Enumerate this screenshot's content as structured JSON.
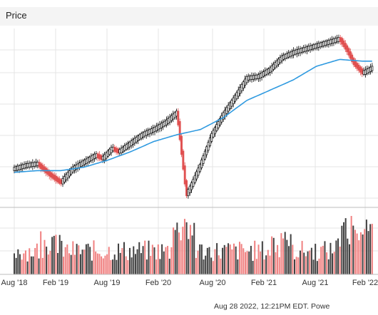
{
  "legend": {
    "series_label": "Price"
  },
  "footer": {
    "timestamp": "Aug 28 2022, 12:21PM EDT.",
    "powered": "Powe"
  },
  "colors": {
    "up": "#000000",
    "down": "#e05050",
    "ma": "#2f9ae0",
    "vol_up": "#404040",
    "vol_down": "#f08080",
    "grid": "#e4e4e4"
  },
  "chart_data": {
    "type": "line",
    "x_tick_labels": [
      "Aug '18",
      "Feb '19",
      "Aug '19",
      "Feb '20",
      "Aug '20",
      "Feb '21",
      "Aug '21",
      "Feb '22"
    ],
    "price_path": [
      [
        0.0,
        0.2
      ],
      [
        0.05,
        0.22
      ],
      [
        0.1,
        0.23
      ],
      [
        0.15,
        0.17
      ],
      [
        0.2,
        0.12
      ],
      [
        0.25,
        0.2
      ],
      [
        0.3,
        0.24
      ],
      [
        0.35,
        0.28
      ],
      [
        0.38,
        0.26
      ],
      [
        0.42,
        0.32
      ],
      [
        0.45,
        0.3
      ],
      [
        0.5,
        0.35
      ],
      [
        0.55,
        0.4
      ],
      [
        0.6,
        0.43
      ],
      [
        0.65,
        0.47
      ],
      [
        0.7,
        0.53
      ],
      [
        0.74,
        0.05
      ],
      [
        0.76,
        0.1
      ],
      [
        0.8,
        0.22
      ],
      [
        0.85,
        0.4
      ],
      [
        0.9,
        0.52
      ],
      [
        0.95,
        0.62
      ],
      [
        1.0,
        0.73
      ],
      [
        1.05,
        0.74
      ],
      [
        1.1,
        0.78
      ],
      [
        1.15,
        0.85
      ],
      [
        1.2,
        0.88
      ],
      [
        1.25,
        0.9
      ],
      [
        1.3,
        0.92
      ],
      [
        1.35,
        0.94
      ],
      [
        1.4,
        0.96
      ],
      [
        1.43,
        0.9
      ],
      [
        1.46,
        0.82
      ],
      [
        1.5,
        0.76
      ],
      [
        1.54,
        0.79
      ]
    ],
    "ma_path": [
      [
        0.0,
        0.18
      ],
      [
        0.1,
        0.19
      ],
      [
        0.2,
        0.19
      ],
      [
        0.3,
        0.21
      ],
      [
        0.4,
        0.25
      ],
      [
        0.5,
        0.3
      ],
      [
        0.6,
        0.36
      ],
      [
        0.7,
        0.4
      ],
      [
        0.8,
        0.43
      ],
      [
        0.9,
        0.5
      ],
      [
        1.0,
        0.6
      ],
      [
        1.1,
        0.66
      ],
      [
        1.2,
        0.72
      ],
      [
        1.3,
        0.8
      ],
      [
        1.4,
        0.84
      ],
      [
        1.5,
        0.83
      ],
      [
        1.54,
        0.83
      ]
    ],
    "grid": true
  }
}
